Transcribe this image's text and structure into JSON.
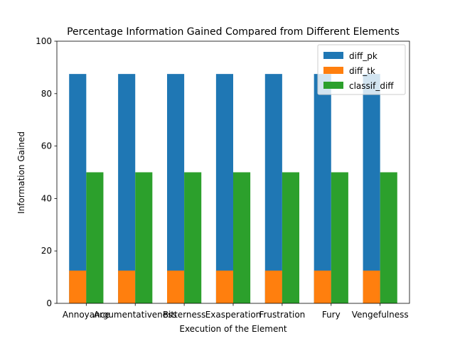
{
  "chart_data": {
    "type": "bar",
    "title": "Percentage Information Gained Compared from Different Elements",
    "xlabel": "Execution of the Element",
    "ylabel": "Information Gained",
    "categories": [
      "Annoyance",
      "Argumentativeness",
      "Bitterness",
      "Exasperation",
      "Frustration",
      "Fury",
      "Vengefulness"
    ],
    "ylim": [
      0,
      100
    ],
    "yticks": [
      "0",
      "20",
      "40",
      "60",
      "80",
      "100"
    ],
    "grid": false,
    "legend_position": "top-right",
    "series": [
      {
        "name": "diff_pk",
        "color": "#1f77b4",
        "values": [
          87.5,
          87.5,
          87.5,
          87.5,
          87.5,
          87.5,
          87.5
        ]
      },
      {
        "name": "diff_tk",
        "color": "#ff7f0e",
        "values": [
          12.5,
          12.5,
          12.5,
          12.5,
          12.5,
          12.5,
          12.5
        ]
      },
      {
        "name": "classif_diff",
        "color": "#2ca02c",
        "values": [
          50,
          50,
          50,
          50,
          50,
          50,
          50
        ]
      }
    ]
  }
}
